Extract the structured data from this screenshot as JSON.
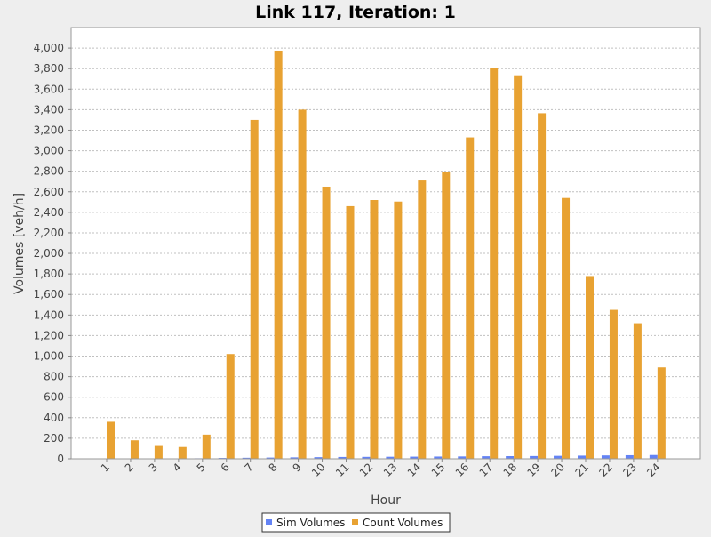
{
  "chart_data": {
    "type": "bar",
    "title": "Link 117, Iteration: 1",
    "xlabel": "Hour",
    "ylabel": "Volumes [veh/h]",
    "categories": [
      "1",
      "2",
      "3",
      "4",
      "5",
      "6",
      "7",
      "8",
      "9",
      "10",
      "11",
      "12",
      "13",
      "14",
      "15",
      "16",
      "17",
      "18",
      "19",
      "20",
      "21",
      "22",
      "23",
      "24"
    ],
    "series": [
      {
        "name": "Sim Volumes",
        "color": "#6383f5",
        "values": [
          2,
          2,
          3,
          3,
          5,
          8,
          10,
          12,
          14,
          16,
          18,
          19,
          20,
          21,
          22,
          23,
          25,
          26,
          27,
          29,
          31,
          33,
          35,
          37
        ]
      },
      {
        "name": "Count Volumes",
        "color": "#e8a232",
        "values": [
          360,
          180,
          125,
          115,
          235,
          1020,
          3300,
          3975,
          3400,
          2650,
          2460,
          2520,
          2505,
          2710,
          2795,
          3130,
          3810,
          3735,
          3365,
          2540,
          1780,
          1450,
          1320,
          890
        ]
      }
    ],
    "ylim": [
      0,
      4200
    ],
    "yticks": [
      0,
      200,
      400,
      600,
      800,
      1000,
      1200,
      1400,
      1600,
      1800,
      2000,
      2200,
      2400,
      2600,
      2800,
      3000,
      3200,
      3400,
      3600,
      3800,
      4000
    ],
    "ytick_labels": [
      "0",
      "200",
      "400",
      "600",
      "800",
      "1,000",
      "1,200",
      "1,400",
      "1,600",
      "1,800",
      "2,000",
      "2,200",
      "2,400",
      "2,600",
      "2,800",
      "3,000",
      "3,200",
      "3,400",
      "3,600",
      "3,800",
      "4,000"
    ],
    "grid": true,
    "legend": "bottom"
  }
}
